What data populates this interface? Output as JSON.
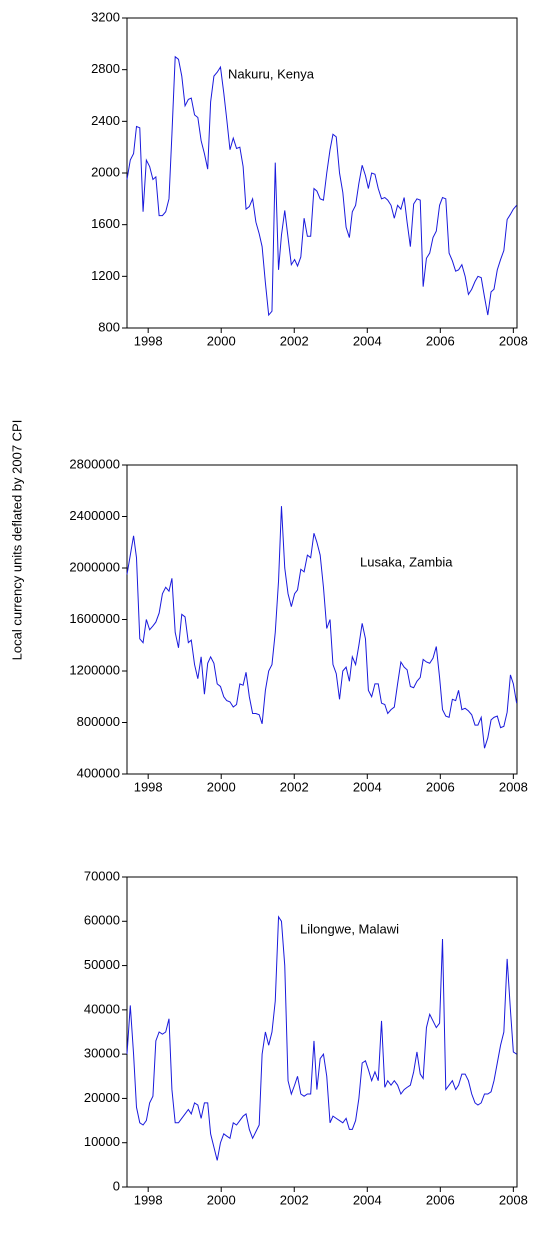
{
  "y_axis_label": "Local currency units deflated by 2007 CPI",
  "chart_data": [
    {
      "type": "line",
      "annotation": "Nakuru, Kenya",
      "color": "#1a1adc",
      "xlim": [
        1997.42,
        2008.1
      ],
      "xticks": [
        1998,
        2000,
        2002,
        2004,
        2006,
        2008
      ],
      "ylim": [
        800,
        3200
      ],
      "yticks": [
        800,
        1200,
        1600,
        2000,
        2400,
        2800,
        3200
      ],
      "x": [
        1997.42,
        1997.51,
        1997.6,
        1997.68,
        1997.77,
        1997.86,
        1997.95,
        1998.04,
        1998.13,
        1998.21,
        1998.3,
        1998.39,
        1998.48,
        1998.57,
        1998.65,
        1998.74,
        1998.83,
        1998.92,
        1999.01,
        1999.1,
        1999.18,
        1999.27,
        1999.36,
        1999.45,
        1999.54,
        1999.63,
        1999.71,
        1999.8,
        1999.89,
        1999.98,
        2000.07,
        2000.15,
        2000.24,
        2000.33,
        2000.42,
        2000.51,
        2000.6,
        2000.68,
        2000.77,
        2000.86,
        2000.95,
        2001.04,
        2001.12,
        2001.21,
        2001.3,
        2001.39,
        2001.48,
        2001.57,
        2001.65,
        2001.74,
        2001.83,
        2001.92,
        2002.01,
        2002.09,
        2002.18,
        2002.27,
        2002.36,
        2002.45,
        2002.54,
        2002.62,
        2002.71,
        2002.8,
        2002.89,
        2002.98,
        2003.06,
        2003.15,
        2003.24,
        2003.33,
        2003.42,
        2003.51,
        2003.59,
        2003.68,
        2003.77,
        2003.86,
        2003.95,
        2004.03,
        2004.12,
        2004.21,
        2004.3,
        2004.39,
        2004.48,
        2004.56,
        2004.65,
        2004.74,
        2004.83,
        2004.92,
        2005.01,
        2005.09,
        2005.18,
        2005.27,
        2005.36,
        2005.45,
        2005.53,
        2005.62,
        2005.71,
        2005.8,
        2005.89,
        2005.98,
        2006.06,
        2006.15,
        2006.24,
        2006.33,
        2006.42,
        2006.5,
        2006.59,
        2006.68,
        2006.77,
        2006.86,
        2006.95,
        2007.03,
        2007.12,
        2007.21,
        2007.3,
        2007.39,
        2007.47,
        2007.56,
        2007.65,
        2007.74,
        2007.83,
        2007.92,
        2008.0,
        2008.09
      ],
      "values": [
        1950,
        2100,
        2150,
        2360,
        2350,
        1700,
        2100,
        2050,
        1950,
        1970,
        1670,
        1670,
        1700,
        1800,
        2300,
        2900,
        2880,
        2750,
        2520,
        2570,
        2580,
        2450,
        2430,
        2250,
        2150,
        2030,
        2550,
        2750,
        2780,
        2820,
        2620,
        2420,
        2180,
        2270,
        2190,
        2200,
        2050,
        1720,
        1740,
        1800,
        1620,
        1530,
        1430,
        1150,
        900,
        930,
        2080,
        1250,
        1520,
        1710,
        1500,
        1290,
        1330,
        1280,
        1350,
        1650,
        1510,
        1510,
        1880,
        1860,
        1800,
        1790,
        2000,
        2180,
        2300,
        2280,
        2000,
        1850,
        1580,
        1500,
        1700,
        1750,
        1920,
        2060,
        1980,
        1880,
        2000,
        1990,
        1880,
        1800,
        1810,
        1790,
        1750,
        1650,
        1750,
        1720,
        1810,
        1620,
        1430,
        1760,
        1800,
        1790,
        1120,
        1340,
        1380,
        1500,
        1550,
        1750,
        1810,
        1800,
        1380,
        1320,
        1240,
        1250,
        1290,
        1200,
        1060,
        1100,
        1160,
        1200,
        1190,
        1040,
        900,
        1080,
        1100,
        1250,
        1330,
        1400,
        1640,
        1680,
        1720,
        1750
      ]
    },
    {
      "type": "line",
      "annotation": "Lusaka, Zambia",
      "color": "#1a1adc",
      "xlim": [
        1997.42,
        2008.1
      ],
      "xticks": [
        1998,
        2000,
        2002,
        2004,
        2006,
        2008
      ],
      "ylim": [
        400000,
        2800000
      ],
      "yticks": [
        400000,
        800000,
        1200000,
        1600000,
        2000000,
        2400000,
        2800000
      ],
      "x": [
        1997.42,
        1997.51,
        1997.6,
        1997.68,
        1997.77,
        1997.86,
        1997.95,
        1998.04,
        1998.13,
        1998.21,
        1998.3,
        1998.39,
        1998.48,
        1998.57,
        1998.65,
        1998.74,
        1998.83,
        1998.92,
        1999.01,
        1999.1,
        1999.18,
        1999.27,
        1999.36,
        1999.45,
        1999.54,
        1999.63,
        1999.71,
        1999.8,
        1999.89,
        1999.98,
        2000.07,
        2000.15,
        2000.24,
        2000.33,
        2000.42,
        2000.51,
        2000.6,
        2000.68,
        2000.77,
        2000.86,
        2000.95,
        2001.04,
        2001.12,
        2001.21,
        2001.3,
        2001.39,
        2001.48,
        2001.57,
        2001.65,
        2001.74,
        2001.83,
        2001.92,
        2002.01,
        2002.09,
        2002.18,
        2002.27,
        2002.36,
        2002.45,
        2002.54,
        2002.62,
        2002.71,
        2002.8,
        2002.89,
        2002.98,
        2003.06,
        2003.15,
        2003.24,
        2003.33,
        2003.42,
        2003.51,
        2003.59,
        2003.68,
        2003.77,
        2003.86,
        2003.95,
        2004.03,
        2004.12,
        2004.21,
        2004.3,
        2004.39,
        2004.48,
        2004.56,
        2004.65,
        2004.74,
        2004.83,
        2004.92,
        2005.01,
        2005.09,
        2005.18,
        2005.27,
        2005.36,
        2005.45,
        2005.53,
        2005.62,
        2005.71,
        2005.8,
        2005.89,
        2005.98,
        2006.06,
        2006.15,
        2006.24,
        2006.33,
        2006.42,
        2006.5,
        2006.59,
        2006.68,
        2006.77,
        2006.86,
        2006.95,
        2007.03,
        2007.12,
        2007.21,
        2007.3,
        2007.39,
        2007.47,
        2007.56,
        2007.65,
        2007.74,
        2007.83,
        2007.92,
        2008.0,
        2008.09
      ],
      "values": [
        1950000,
        2100000,
        2250000,
        2080000,
        1450000,
        1420000,
        1600000,
        1520000,
        1550000,
        1580000,
        1650000,
        1800000,
        1850000,
        1820000,
        1920000,
        1500000,
        1380000,
        1640000,
        1620000,
        1420000,
        1440000,
        1250000,
        1140000,
        1310000,
        1020000,
        1260000,
        1310000,
        1260000,
        1100000,
        1080000,
        1000000,
        970000,
        960000,
        920000,
        940000,
        1100000,
        1090000,
        1190000,
        1000000,
        870000,
        870000,
        860000,
        790000,
        1050000,
        1200000,
        1250000,
        1500000,
        1900000,
        2480000,
        2000000,
        1800000,
        1700000,
        1800000,
        1830000,
        1990000,
        1970000,
        2100000,
        2080000,
        2270000,
        2200000,
        2100000,
        1850000,
        1530000,
        1600000,
        1250000,
        1180000,
        980000,
        1200000,
        1230000,
        1120000,
        1310000,
        1250000,
        1400000,
        1570000,
        1450000,
        1050000,
        1000000,
        1100000,
        1100000,
        950000,
        940000,
        870000,
        900000,
        920000,
        1100000,
        1270000,
        1230000,
        1210000,
        1080000,
        1070000,
        1120000,
        1150000,
        1290000,
        1270000,
        1260000,
        1300000,
        1390000,
        1150000,
        900000,
        850000,
        840000,
        980000,
        970000,
        1050000,
        900000,
        910000,
        890000,
        860000,
        780000,
        780000,
        840000,
        600000,
        680000,
        820000,
        840000,
        850000,
        760000,
        770000,
        880000,
        1170000,
        1100000,
        950000
      ]
    },
    {
      "type": "line",
      "annotation": "Lilongwe,  Malawi",
      "color": "#1a1adc",
      "xlim": [
        1997.42,
        2008.1
      ],
      "xticks": [
        1998,
        2000,
        2002,
        2004,
        2006,
        2008
      ],
      "ylim": [
        0,
        70000
      ],
      "yticks": [
        0,
        10000,
        20000,
        30000,
        40000,
        50000,
        60000,
        70000
      ],
      "x": [
        1997.42,
        1997.51,
        1997.6,
        1997.68,
        1997.77,
        1997.86,
        1997.95,
        1998.04,
        1998.13,
        1998.21,
        1998.3,
        1998.39,
        1998.48,
        1998.57,
        1998.65,
        1998.74,
        1998.83,
        1998.92,
        1999.01,
        1999.1,
        1999.18,
        1999.27,
        1999.36,
        1999.45,
        1999.54,
        1999.63,
        1999.71,
        1999.8,
        1999.89,
        1999.98,
        2000.07,
        2000.15,
        2000.24,
        2000.33,
        2000.42,
        2000.51,
        2000.6,
        2000.68,
        2000.77,
        2000.86,
        2000.95,
        2001.04,
        2001.12,
        2001.21,
        2001.3,
        2001.39,
        2001.48,
        2001.57,
        2001.65,
        2001.74,
        2001.83,
        2001.92,
        2002.01,
        2002.09,
        2002.18,
        2002.27,
        2002.36,
        2002.45,
        2002.54,
        2002.62,
        2002.71,
        2002.8,
        2002.89,
        2002.98,
        2003.06,
        2003.15,
        2003.24,
        2003.33,
        2003.42,
        2003.51,
        2003.59,
        2003.68,
        2003.77,
        2003.86,
        2003.95,
        2004.03,
        2004.12,
        2004.21,
        2004.3,
        2004.39,
        2004.48,
        2004.56,
        2004.65,
        2004.74,
        2004.83,
        2004.92,
        2005.01,
        2005.09,
        2005.18,
        2005.27,
        2005.36,
        2005.45,
        2005.53,
        2005.62,
        2005.71,
        2005.8,
        2005.89,
        2005.98,
        2006.06,
        2006.15,
        2006.24,
        2006.33,
        2006.42,
        2006.5,
        2006.59,
        2006.68,
        2006.77,
        2006.86,
        2006.95,
        2007.03,
        2007.12,
        2007.21,
        2007.3,
        2007.39,
        2007.47,
        2007.56,
        2007.65,
        2007.74,
        2007.83,
        2007.92,
        2008.0,
        2008.09
      ],
      "values": [
        30000,
        41000,
        30000,
        18000,
        14500,
        14000,
        15000,
        19000,
        20500,
        33000,
        35000,
        34500,
        35000,
        38000,
        22000,
        14500,
        14500,
        15500,
        16500,
        17500,
        16500,
        19000,
        18500,
        15500,
        19000,
        19000,
        12000,
        9000,
        6000,
        10000,
        12000,
        11500,
        11000,
        14500,
        14000,
        15000,
        16000,
        16500,
        13000,
        11000,
        12500,
        14000,
        30000,
        35000,
        32000,
        35000,
        42000,
        61000,
        60000,
        50000,
        24000,
        21000,
        23000,
        25000,
        21000,
        20500,
        21000,
        21000,
        33000,
        22000,
        29000,
        30000,
        25000,
        14500,
        16000,
        15500,
        15000,
        14500,
        15500,
        13000,
        13000,
        15000,
        20000,
        28000,
        28500,
        26500,
        24000,
        26000,
        24000,
        37500,
        22500,
        24000,
        23000,
        24000,
        23000,
        21000,
        22000,
        22500,
        23000,
        26000,
        30500,
        25500,
        24500,
        36000,
        39000,
        37500,
        36000,
        37000,
        56000,
        22000,
        23000,
        24000,
        22000,
        23000,
        25500,
        25500,
        24000,
        21000,
        19000,
        18500,
        19000,
        21000,
        21000,
        21500,
        24000,
        28000,
        32000,
        35000,
        51500,
        40000,
        30500,
        30000
      ]
    }
  ]
}
